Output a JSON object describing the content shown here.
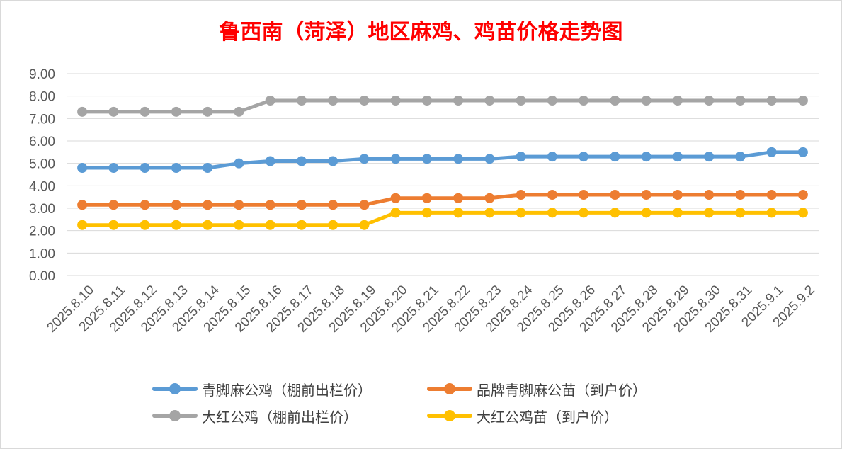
{
  "chart_data": {
    "type": "line",
    "title": "鲁西南（菏泽）地区麻鸡、鸡苗价格走势图",
    "xlabel": "",
    "ylabel": "",
    "ylim": [
      0,
      9
    ],
    "yticks": [
      "0.00",
      "1.00",
      "2.00",
      "3.00",
      "4.00",
      "5.00",
      "6.00",
      "7.00",
      "8.00",
      "9.00"
    ],
    "grid": "horizontal",
    "legend_position": "bottom",
    "categories": [
      "2025.8.10",
      "2025.8.11",
      "2025.8.12",
      "2025.8.13",
      "2025.8.14",
      "2025.8.15",
      "2025.8.16",
      "2025.8.17",
      "2025.8.18",
      "2025.8.19",
      "2025.8.20",
      "2025.8.21",
      "2025.8.22",
      "2025.8.23",
      "2025.8.24",
      "2025.8.25",
      "2025.8.26",
      "2025.8.27",
      "2025.8.28",
      "2025.8.29",
      "2025.8.30",
      "2025.8.31",
      "2025.9.1",
      "2025.9.2"
    ],
    "series": [
      {
        "name": "青脚麻公鸡（棚前出栏价）",
        "color": "#5b9bd5",
        "values": [
          4.8,
          4.8,
          4.8,
          4.8,
          4.8,
          5.0,
          5.1,
          5.1,
          5.1,
          5.2,
          5.2,
          5.2,
          5.2,
          5.2,
          5.3,
          5.3,
          5.3,
          5.3,
          5.3,
          5.3,
          5.3,
          5.3,
          5.5,
          5.5
        ]
      },
      {
        "name": "品牌青脚麻公苗（到户价）",
        "color": "#ed7d31",
        "values": [
          3.15,
          3.15,
          3.15,
          3.15,
          3.15,
          3.15,
          3.15,
          3.15,
          3.15,
          3.15,
          3.45,
          3.45,
          3.45,
          3.45,
          3.6,
          3.6,
          3.6,
          3.6,
          3.6,
          3.6,
          3.6,
          3.6,
          3.6,
          3.6
        ]
      },
      {
        "name": "大红公鸡（棚前出栏价）",
        "color": "#a5a5a5",
        "values": [
          7.3,
          7.3,
          7.3,
          7.3,
          7.3,
          7.3,
          7.8,
          7.8,
          7.8,
          7.8,
          7.8,
          7.8,
          7.8,
          7.8,
          7.8,
          7.8,
          7.8,
          7.8,
          7.8,
          7.8,
          7.8,
          7.8,
          7.8,
          7.8
        ]
      },
      {
        "name": "大红公鸡苗（到户价）",
        "color": "#ffc000",
        "values": [
          2.25,
          2.25,
          2.25,
          2.25,
          2.25,
          2.25,
          2.25,
          2.25,
          2.25,
          2.25,
          2.8,
          2.8,
          2.8,
          2.8,
          2.8,
          2.8,
          2.8,
          2.8,
          2.8,
          2.8,
          2.8,
          2.8,
          2.8,
          2.8
        ]
      }
    ]
  }
}
